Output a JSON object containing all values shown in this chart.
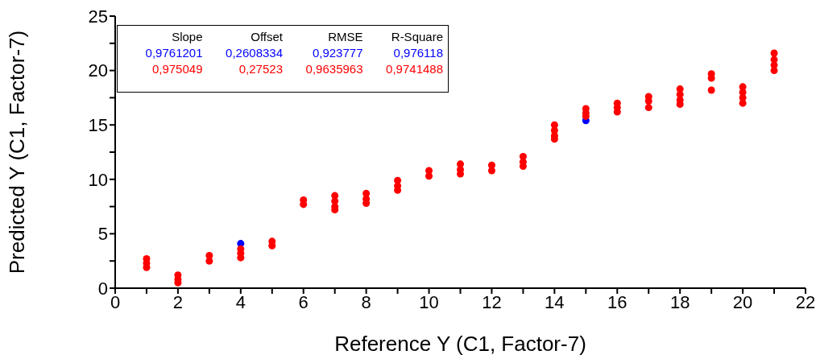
{
  "chart_data": {
    "type": "scatter",
    "xlabel": "Reference Y (C1, Factor-7)",
    "ylabel": "Predicted Y (C1, Factor-7)",
    "xlim": [
      0,
      22
    ],
    "ylim": [
      0,
      25
    ],
    "xticks": [
      0,
      {
        "value": 1,
        "label": null
      },
      2,
      {
        "value": 3,
        "label": null
      },
      4,
      {
        "value": 5,
        "label": null
      },
      6,
      {
        "value": 7,
        "label": null
      },
      8,
      {
        "value": 9,
        "label": null
      },
      10,
      {
        "value": 11,
        "label": null
      },
      12,
      {
        "value": 13,
        "label": null
      },
      14,
      {
        "value": 15,
        "label": null
      },
      16,
      {
        "value": 17,
        "label": null
      },
      18,
      {
        "value": 19,
        "label": null
      },
      20,
      {
        "value": 21,
        "label": null
      },
      22
    ],
    "yticks": [
      0,
      {
        "value": 2.5,
        "label": null
      },
      5,
      {
        "value": 7.5,
        "label": null
      },
      10,
      {
        "value": 12.5,
        "label": null
      },
      15,
      {
        "value": 17.5,
        "label": null
      },
      20,
      {
        "value": 22.5,
        "label": null
      },
      25
    ],
    "marker": "circle",
    "annotations": [
      "Slope",
      "Offset",
      "RMSE",
      "R-Square",
      "0,9761201",
      "0,2608334",
      "0,923777",
      "0,976118",
      "0,975049",
      "0,27523",
      "0,9635963",
      "0,9741488"
    ],
    "series": [
      {
        "color": "#0000ff",
        "x": [
          4,
          15
        ],
        "values": [
          4.1,
          15.4
        ]
      },
      {
        "color": "#ff0000",
        "x": [
          1,
          1,
          1,
          2,
          2,
          2,
          3,
          3,
          4,
          4,
          4,
          5,
          5,
          6,
          6,
          7,
          7,
          7,
          7,
          8,
          8,
          8,
          9,
          9,
          9,
          10,
          10,
          11,
          11,
          11,
          12,
          12,
          13,
          13,
          13,
          14,
          14,
          14,
          14,
          15,
          15,
          15,
          16,
          16,
          16,
          17,
          17,
          17,
          18,
          18,
          18,
          18,
          19,
          19,
          19,
          20,
          20,
          20,
          20,
          21,
          21,
          21,
          21
        ],
        "values": [
          2.7,
          2.3,
          1.9,
          1.2,
          0.8,
          0.5,
          3.0,
          2.5,
          3.6,
          3.2,
          2.8,
          4.3,
          3.9,
          8.1,
          7.7,
          8.5,
          8.0,
          7.5,
          7.2,
          8.7,
          8.2,
          7.8,
          9.9,
          9.4,
          9.0,
          10.8,
          10.3,
          11.4,
          10.9,
          10.5,
          11.3,
          10.8,
          12.1,
          11.6,
          11.2,
          15.0,
          14.5,
          14.0,
          13.7,
          16.5,
          16.1,
          15.8,
          17.0,
          16.6,
          16.2,
          17.6,
          17.2,
          16.6,
          18.3,
          17.8,
          17.3,
          16.9,
          19.7,
          19.3,
          18.2,
          18.5,
          18.0,
          17.5,
          17.0,
          21.6,
          21.0,
          20.5,
          20.0
        ]
      }
    ]
  }
}
